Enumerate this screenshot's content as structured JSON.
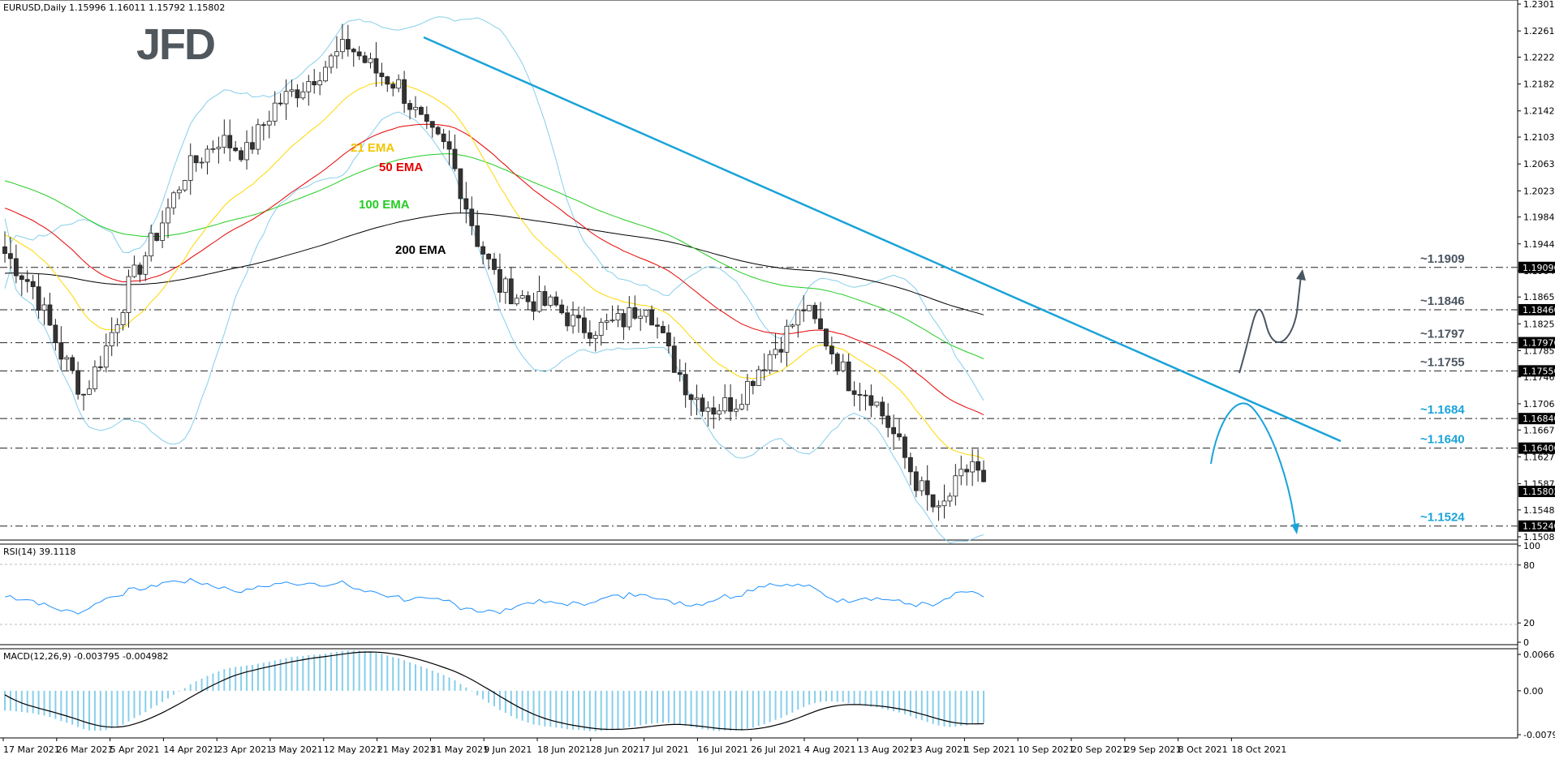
{
  "chart_data": [
    {
      "type": "candlestick",
      "title": "EURUSD,Daily  1.15996 1.16011 1.15792 1.15802",
      "ylim": [
        1.1508,
        1.2301
      ],
      "y_ticks": [
        "1.23010",
        "1.22610",
        "1.22220",
        "1.21820",
        "1.21420",
        "1.21030",
        "1.20630",
        "1.20230",
        "1.19840",
        "1.19440",
        "1.19040",
        "1.18650",
        "1.18250",
        "1.17850",
        "1.17460",
        "1.17060",
        "1.16670",
        "1.16270",
        "1.15870",
        "1.15480",
        "1.15080"
      ],
      "x_labels": [
        "17 Mar 2021",
        "26 Mar 2021",
        "5 Apr 2021",
        "14 Apr 2021",
        "23 Apr 2021",
        "3 May 2021",
        "12 May 2021",
        "21 May 2021",
        "31 May 2021",
        "9 Jun 2021",
        "18 Jun 2021",
        "28 Jun 2021",
        "7 Jul 2021",
        "16 Jul 2021",
        "26 Jul 2021",
        "4 Aug 2021",
        "13 Aug 2021",
        "23 Aug 2021",
        "1 Sep 2021",
        "10 Sep 2021",
        "20 Sep 2021",
        "29 Sep 2021",
        "8 Oct 2021",
        "18 Oct 2021"
      ],
      "levels": [
        {
          "label": "~1.1909",
          "tag": "1.19090",
          "value": 1.1909
        },
        {
          "label": "~1.1846",
          "tag": "1.18460",
          "value": 1.1846
        },
        {
          "label": "~1.1797",
          "tag": "1.17970",
          "value": 1.1797
        },
        {
          "label": "~1.1755",
          "tag": "1.17550",
          "value": 1.1755
        },
        {
          "label": "~1.1684",
          "tag": "1.16840",
          "value": 1.1684
        },
        {
          "label": "~1.1640",
          "tag": "1.16400",
          "value": 1.164
        },
        {
          "label": "~1.1524",
          "tag": "1.15240",
          "value": 1.1524
        }
      ],
      "current_price": {
        "tag": "1.15802",
        "value": 1.15802
      },
      "series": [
        {
          "name": "21 EMA",
          "color": "#ffd700"
        },
        {
          "name": "50 EMA",
          "color": "#e60000"
        },
        {
          "name": "100 EMA",
          "color": "#22cc22"
        },
        {
          "name": "200 EMA",
          "color": "#000000"
        }
      ],
      "colors": {
        "bull_candle": "#ffffff",
        "bear_candle": "#333333",
        "bollinger": "#87ceeb",
        "trendline": "#1aa3d9",
        "scenario_up": "#4a5560",
        "scenario_down": "#1aa3d9",
        "level_labels_gray": "#4a5560",
        "level_labels_blue": "#1aa3d9"
      }
    },
    {
      "type": "line",
      "title": "RSI(14) 39.1118",
      "ylim": [
        0,
        100
      ],
      "y_ticks": [
        "100",
        "80",
        "20",
        "0"
      ],
      "levels": [
        80,
        20
      ],
      "colors": {
        "line": "#1e90ff"
      }
    },
    {
      "type": "bar",
      "title": "MACD(12,26,9) -0.003795 -0.004982",
      "y_ticks": [
        "0.00662",
        "0.00",
        "-0.007978"
      ],
      "ylim": [
        -0.007978,
        0.00662
      ],
      "colors": {
        "histogram": "#87ceeb",
        "signal": "#000000"
      }
    }
  ],
  "logo": "JFD"
}
